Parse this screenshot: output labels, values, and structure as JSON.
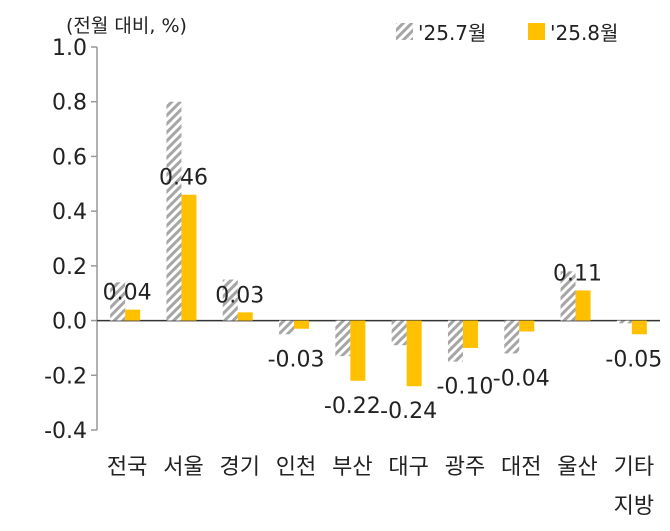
{
  "chart_data": {
    "type": "bar",
    "unit_label": "(전월 대비, %)",
    "categories": [
      "전국",
      "서울",
      "경기",
      "인천",
      "부산",
      "대구",
      "광주",
      "대전",
      "울산",
      "기타\n지방"
    ],
    "series": [
      {
        "name": "'25.7월",
        "values": [
          0.14,
          0.8,
          0.15,
          -0.05,
          -0.13,
          -0.09,
          -0.15,
          -0.12,
          0.18,
          -0.01
        ],
        "labels": [
          "",
          "",
          "",
          "",
          "",
          "",
          "",
          "",
          "",
          ""
        ],
        "color": "#a6a6a6",
        "pattern": "hatch"
      },
      {
        "name": "'25.8월",
        "values": [
          0.04,
          0.46,
          0.03,
          -0.03,
          -0.22,
          -0.24,
          -0.1,
          -0.04,
          0.11,
          -0.05
        ],
        "labels": [
          "0.04",
          "0.46",
          "0.03",
          "-0.03",
          "-0.22",
          "-0.24",
          "-0.10",
          "-0.04",
          "0.11",
          "-0.05"
        ],
        "color": "#ffc000",
        "pattern": "solid"
      }
    ],
    "yticks": [
      "1.0",
      "0.8",
      "0.6",
      "0.4",
      "0.2",
      "0.0",
      "-0.2",
      "-0.4"
    ],
    "ylim": [
      -0.4,
      1.0
    ],
    "legend_position": "top-right",
    "grid": false
  }
}
